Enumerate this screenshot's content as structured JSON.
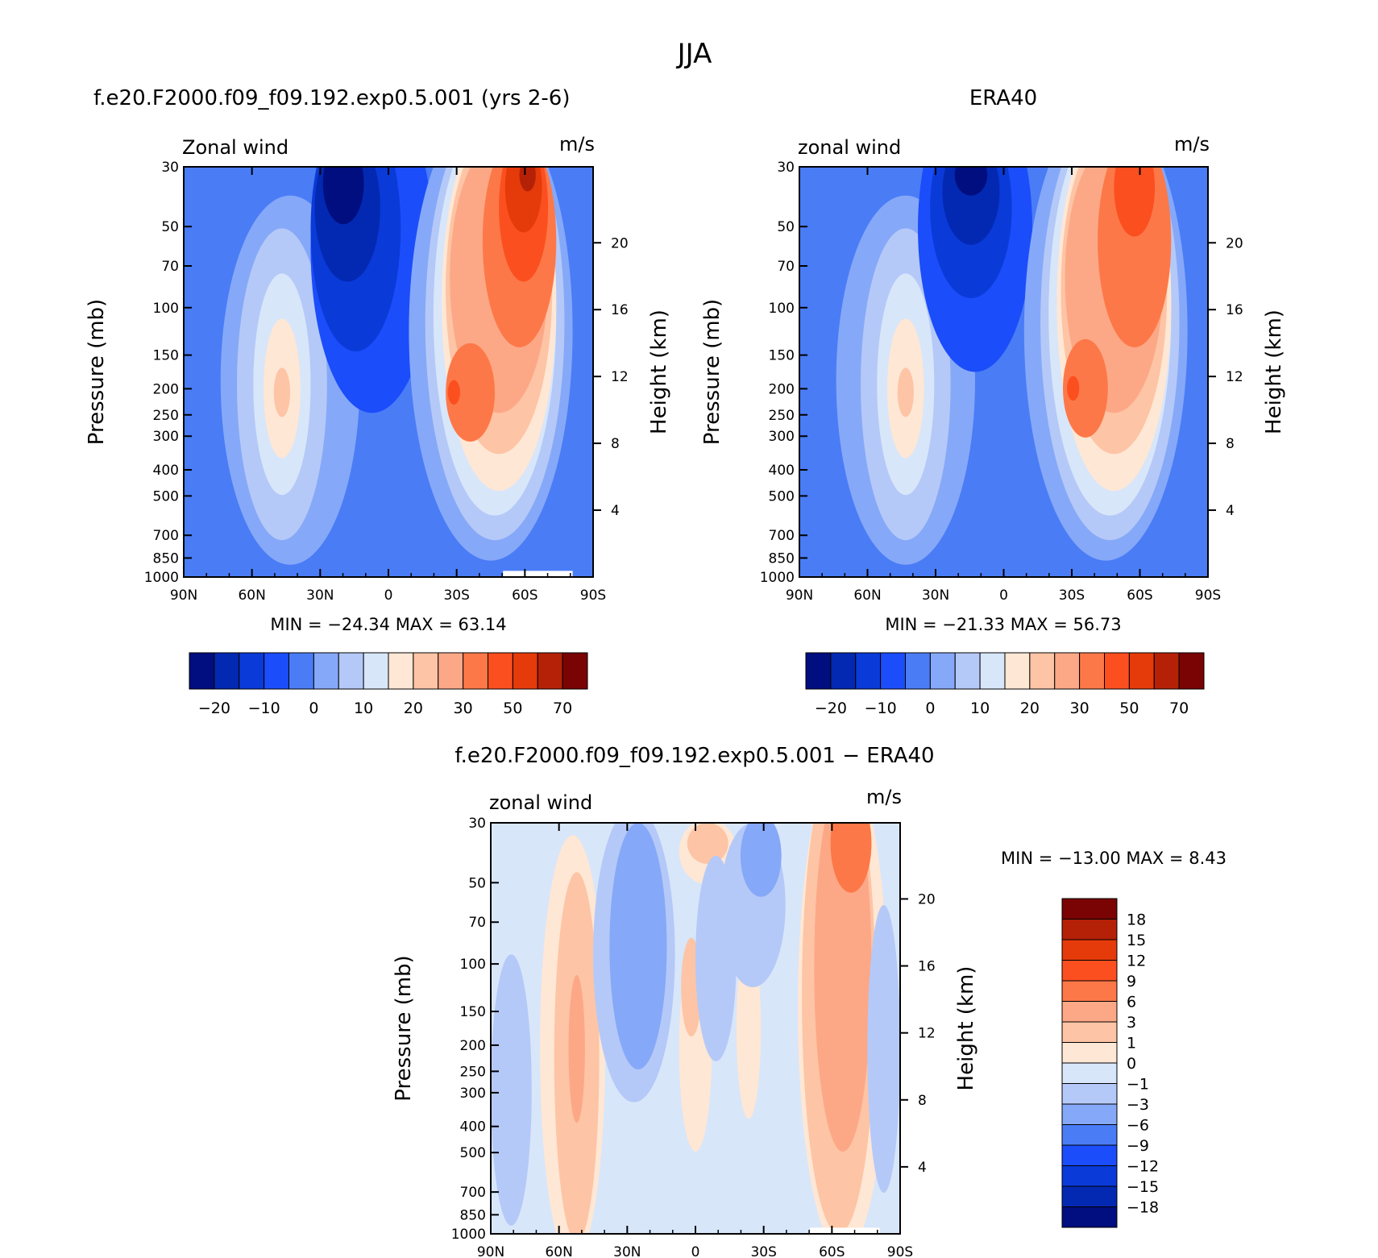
{
  "figure_title": "JJA",
  "chart_data": [
    {
      "type": "heatmap",
      "title": "f.e20.F2000.f09_f09.192.exp0.5.001 (yrs 2-6)",
      "left_label": "Zonal wind",
      "right_label": "m/s",
      "xlabel": "",
      "ylabel": "Pressure (mb)",
      "y2label": "Height (km)",
      "x_ticks": [
        "90N",
        "60N",
        "30N",
        "0",
        "30S",
        "60S",
        "90S"
      ],
      "x_values": [
        90,
        60,
        30,
        0,
        -30,
        -60,
        -90
      ],
      "xlim": [
        90,
        -90
      ],
      "y_ticks": [
        30,
        50,
        70,
        100,
        150,
        200,
        250,
        300,
        400,
        500,
        700,
        850,
        1000
      ],
      "ylim": [
        1000,
        30
      ],
      "y_scale": "log",
      "y2_ticks": [
        20,
        16,
        12,
        8,
        4
      ],
      "minmax_text": "MIN = −24.34   MAX =   63.14",
      "min": -24.34,
      "max": 63.14,
      "colorbar": {
        "orientation": "horizontal",
        "labels": [
          "−20",
          "−10",
          "0",
          "10",
          "20",
          "30",
          "50",
          "70"
        ],
        "colors": [
          "#000e80",
          "#0329b2",
          "#0a3ad8",
          "#1b4dfa",
          "#4a7cf6",
          "#86a8f8",
          "#b5c9f8",
          "#d8e6fa",
          "#fee7d4",
          "#fdc4a5",
          "#fca886",
          "#fd7848",
          "#fc4f1f",
          "#e53a0a",
          "#b42107",
          "#7a0403"
        ]
      }
    },
    {
      "type": "heatmap",
      "title": "ERA40",
      "left_label": "zonal wind",
      "right_label": "m/s",
      "xlabel": "",
      "ylabel": "Pressure (mb)",
      "y2label": "Height (km)",
      "x_ticks": [
        "90N",
        "60N",
        "30N",
        "0",
        "30S",
        "60S",
        "90S"
      ],
      "x_values": [
        90,
        60,
        30,
        0,
        -30,
        -60,
        -90
      ],
      "xlim": [
        90,
        -90
      ],
      "y_ticks": [
        30,
        50,
        70,
        100,
        150,
        200,
        250,
        300,
        400,
        500,
        700,
        850,
        1000
      ],
      "ylim": [
        1000,
        30
      ],
      "y_scale": "log",
      "y2_ticks": [
        20,
        16,
        12,
        8,
        4
      ],
      "minmax_text": "MIN = −21.33   MAX =   56.73",
      "min": -21.33,
      "max": 56.73,
      "colorbar": {
        "orientation": "horizontal",
        "labels": [
          "−20",
          "−10",
          "0",
          "10",
          "20",
          "30",
          "50",
          "70"
        ],
        "colors": [
          "#000e80",
          "#0329b2",
          "#0a3ad8",
          "#1b4dfa",
          "#4a7cf6",
          "#86a8f8",
          "#b5c9f8",
          "#d8e6fa",
          "#fee7d4",
          "#fdc4a5",
          "#fca886",
          "#fd7848",
          "#fc4f1f",
          "#e53a0a",
          "#b42107",
          "#7a0403"
        ]
      }
    },
    {
      "type": "heatmap",
      "title": "f.e20.F2000.f09_f09.192.exp0.5.001 − ERA40",
      "left_label": "zonal wind",
      "right_label": "m/s",
      "xlabel": "",
      "ylabel": "Pressure (mb)",
      "y2label": "Height (km)",
      "x_ticks": [
        "90N",
        "60N",
        "30N",
        "0",
        "30S",
        "60S",
        "90S"
      ],
      "x_values": [
        90,
        60,
        30,
        0,
        -30,
        -60,
        -90
      ],
      "xlim": [
        90,
        -90
      ],
      "y_ticks": [
        30,
        50,
        70,
        100,
        150,
        200,
        250,
        300,
        400,
        500,
        700,
        850,
        1000
      ],
      "ylim": [
        1000,
        30
      ],
      "y_scale": "log",
      "y2_ticks": [
        20,
        16,
        12,
        8,
        4
      ],
      "minmax_text": "MIN = −13.00   MAX =    8.43",
      "min": -13.0,
      "max": 8.43,
      "colorbar": {
        "orientation": "vertical",
        "labels": [
          "18",
          "15",
          "12",
          "9",
          "6",
          "3",
          "1",
          "0",
          "−1",
          "−3",
          "−6",
          "−9",
          "−12",
          "−15",
          "−18"
        ],
        "colors": [
          "#7a0403",
          "#b42107",
          "#e53a0a",
          "#fc4f1f",
          "#fd7848",
          "#fca886",
          "#fdc4a5",
          "#fee7d4",
          "#d8e6fa",
          "#b5c9f8",
          "#86a8f8",
          "#4a7cf6",
          "#1b4dfa",
          "#0a3ad8",
          "#0329b2",
          "#000e80"
        ]
      }
    }
  ]
}
